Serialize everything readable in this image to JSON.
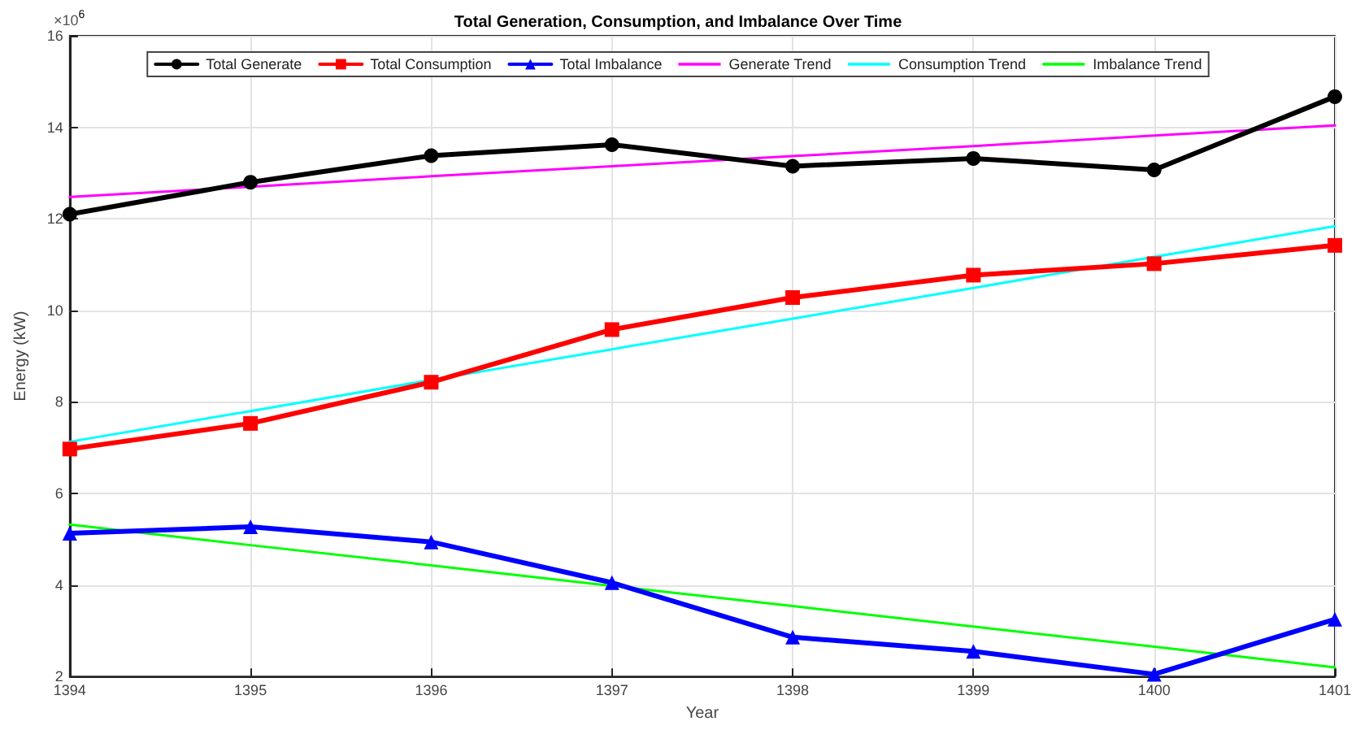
{
  "chart_data": {
    "type": "line",
    "title": "Total Generation, Consumption, and Imbalance Over Time",
    "xlabel": "Year",
    "ylabel": "Energy (kW)",
    "annotations": [
      "×10$^{6}$"
    ],
    "x": [
      1394,
      1395,
      1396,
      1397,
      1398,
      1399,
      1400,
      1401
    ],
    "xlim": [
      1394,
      1401
    ],
    "xticks": [
      1394,
      1395,
      1396,
      1397,
      1398,
      1399,
      1400,
      1401
    ],
    "ylim": [
      2,
      16
    ],
    "yticks": [
      2,
      4,
      6,
      8,
      10,
      12,
      14,
      16
    ],
    "grid": true,
    "legend": "top",
    "line_style": "solid",
    "series": [
      {
        "name": "Total Generate",
        "color": "#000000",
        "marker": "circle",
        "values": [
          12.1,
          12.8,
          13.38,
          13.62,
          13.15,
          13.32,
          13.07,
          14.67
        ]
      },
      {
        "name": "Total Consumption",
        "color": "#ff0000",
        "marker": "square",
        "values": [
          6.97,
          7.53,
          8.43,
          9.58,
          10.28,
          10.77,
          11.02,
          11.42
        ]
      },
      {
        "name": "Total Imbalance",
        "color": "#0000ff",
        "marker": "triangle",
        "values": [
          5.13,
          5.27,
          4.94,
          4.05,
          2.86,
          2.55,
          2.05,
          3.25
        ]
      },
      {
        "name": "Generate Trend",
        "color": "#ff00ff",
        "marker": "none",
        "values": [
          12.48,
          12.7,
          12.93,
          13.15,
          13.37,
          13.59,
          13.82,
          14.04
        ]
      },
      {
        "name": "Consumption Trend",
        "color": "#00ffff",
        "marker": "none",
        "values": [
          7.13,
          7.8,
          8.48,
          9.15,
          9.82,
          10.49,
          11.17,
          11.84
        ]
      },
      {
        "name": "Imbalance Trend",
        "color": "#00ff00",
        "marker": "none",
        "values": [
          5.32,
          4.87,
          4.43,
          3.98,
          3.54,
          3.09,
          2.65,
          2.2
        ]
      }
    ]
  }
}
